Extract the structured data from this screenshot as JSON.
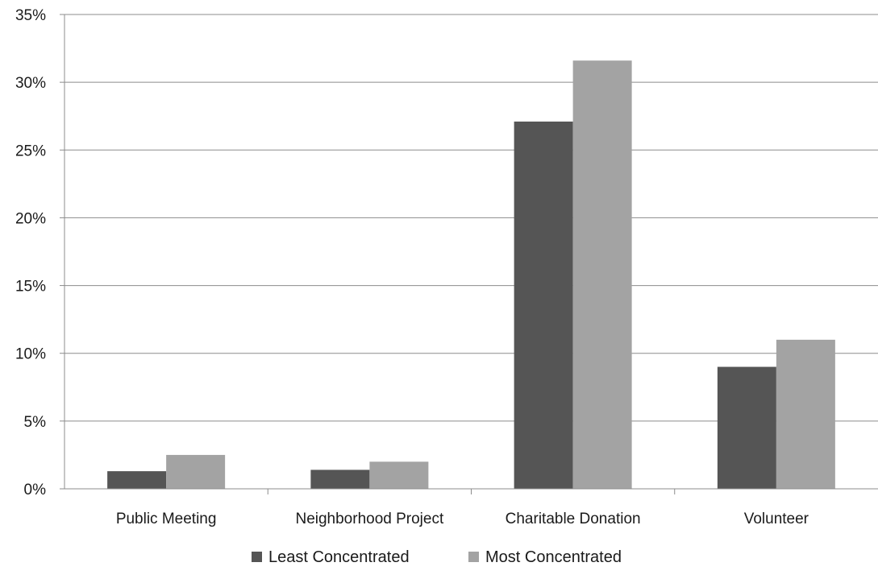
{
  "chart_data": {
    "type": "bar",
    "title": "",
    "xlabel": "",
    "ylabel": "",
    "categories": [
      "Public Meeting",
      "Neighborhood Project",
      "Charitable Donation",
      "Volunteer"
    ],
    "series": [
      {
        "name": "Least Concentrated",
        "values": [
          1.3,
          1.4,
          27.1,
          9.0
        ],
        "color": "#555555"
      },
      {
        "name": "Most Concentrated",
        "values": [
          2.5,
          2.0,
          31.6,
          11.0
        ],
        "color": "#a3a3a3"
      }
    ],
    "ylim": [
      0,
      35
    ],
    "yticks": [
      0,
      5,
      10,
      15,
      20,
      25,
      30,
      35
    ],
    "ytick_labels": [
      "0%",
      "5%",
      "10%",
      "15%",
      "20%",
      "25%",
      "30%",
      "35%"
    ],
    "grid": true,
    "legend_position": "bottom",
    "colors": {
      "axis": "#8c8c8c",
      "grid": "#8c8c8c"
    }
  }
}
